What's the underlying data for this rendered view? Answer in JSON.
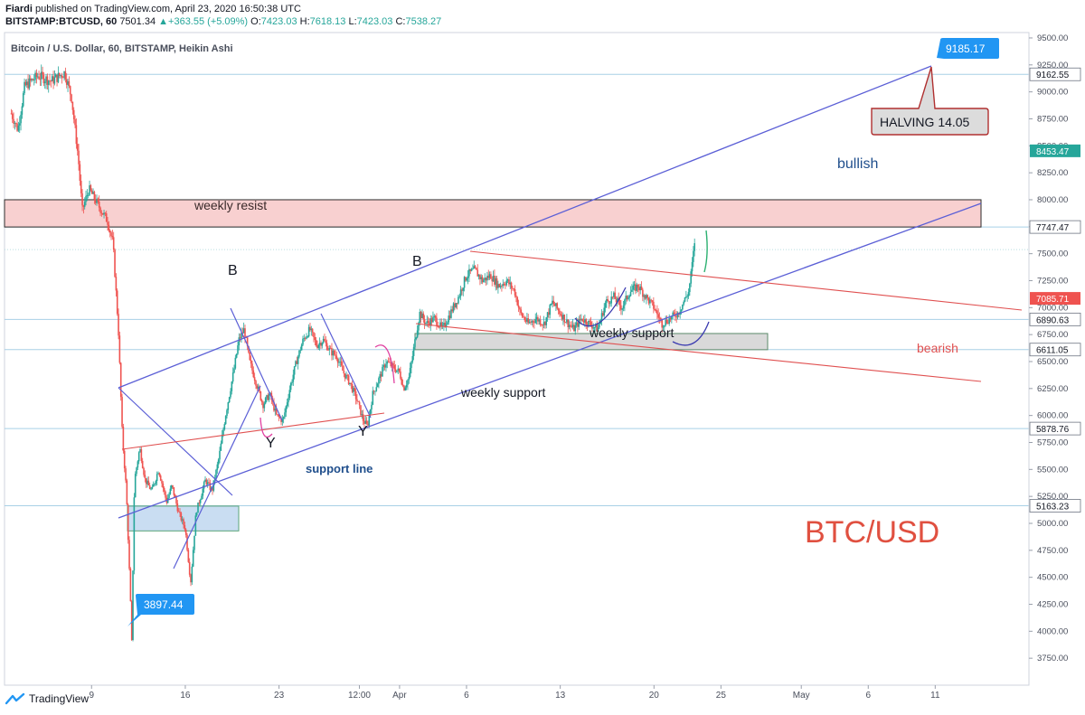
{
  "header": {
    "author": "Fiardi",
    "published_text": "published on TradingView.com, April 23, 2020 16:50:38 UTC",
    "symbol": "BITSTAMP:BTCUSD, 60",
    "last": "7501.34",
    "change_arrow": "▲",
    "change": "+363.55 (+5.09%)",
    "o_label": "O:",
    "o": "7423.03",
    "h_label": "H:",
    "h": "7618.13",
    "l_label": "L:",
    "l": "7423.03",
    "c_label": "C:",
    "c": "7538.27"
  },
  "footer": {
    "brand": "TradingView",
    "logo_icon": "tradingview-logo-icon"
  },
  "chart_data": {
    "type": "candlestick",
    "title": "Bitcoin / U.S. Dollar, 60, BITSTAMP, Heikin Ashi",
    "ylim": [
      3500,
      9550
    ],
    "y_ticks": [
      3750,
      4000,
      4250,
      4500,
      4750,
      5000,
      5250,
      5500,
      5750,
      6000,
      6250,
      6500,
      6750,
      7000,
      7250,
      7500,
      7750,
      8000,
      8250,
      8500,
      8750,
      9000,
      9250,
      9500
    ],
    "x_ticks": [
      {
        "label": "9",
        "day": 9
      },
      {
        "label": "16",
        "day": 16
      },
      {
        "label": "23",
        "day": 23
      },
      {
        "label": "12:00",
        "day": 29
      },
      {
        "label": "Apr",
        "day": 32
      },
      {
        "label": "6",
        "day": 37
      },
      {
        "label": "13",
        "day": 44
      },
      {
        "label": "20",
        "day": 51
      },
      {
        "label": "25",
        "day": 56
      },
      {
        "label": "May",
        "day": 62
      },
      {
        "label": "6",
        "day": 67
      },
      {
        "label": "11",
        "day": 72
      }
    ],
    "x_range_days": [
      2.5,
      79
    ],
    "price_path": [
      [
        3.0,
        8800
      ],
      [
        3.5,
        8650
      ],
      [
        4.0,
        9050
      ],
      [
        5.0,
        9150
      ],
      [
        6.0,
        9100
      ],
      [
        7.0,
        9180
      ],
      [
        7.5,
        8950
      ],
      [
        8.0,
        8400
      ],
      [
        8.3,
        7900
      ],
      [
        8.8,
        8100
      ],
      [
        9.5,
        7950
      ],
      [
        10.2,
        7800
      ],
      [
        10.6,
        7600
      ],
      [
        11.0,
        6800
      ],
      [
        11.3,
        5800
      ],
      [
        11.6,
        5300
      ],
      [
        11.9,
        4300
      ],
      [
        12.0,
        3900
      ],
      [
        12.2,
        5400
      ],
      [
        12.6,
        5700
      ],
      [
        13.0,
        5400
      ],
      [
        13.5,
        5300
      ],
      [
        14.0,
        5500
      ],
      [
        14.6,
        5200
      ],
      [
        15.0,
        5350
      ],
      [
        15.5,
        5100
      ],
      [
        16.0,
        4950
      ],
      [
        16.4,
        4450
      ],
      [
        16.8,
        5100
      ],
      [
        17.5,
        5400
      ],
      [
        18.0,
        5300
      ],
      [
        18.5,
        5600
      ],
      [
        19.0,
        6000
      ],
      [
        19.6,
        6400
      ],
      [
        20.0,
        6700
      ],
      [
        20.4,
        6800
      ],
      [
        20.8,
        6500
      ],
      [
        21.3,
        6300
      ],
      [
        21.8,
        6100
      ],
      [
        22.3,
        6200
      ],
      [
        22.8,
        6000
      ],
      [
        23.3,
        5950
      ],
      [
        23.8,
        6250
      ],
      [
        24.3,
        6500
      ],
      [
        24.8,
        6700
      ],
      [
        25.3,
        6800
      ],
      [
        25.8,
        6650
      ],
      [
        26.3,
        6700
      ],
      [
        26.8,
        6600
      ],
      [
        27.3,
        6550
      ],
      [
        27.8,
        6400
      ],
      [
        28.3,
        6300
      ],
      [
        28.8,
        6150
      ],
      [
        29.3,
        5950
      ],
      [
        29.6,
        5900
      ],
      [
        30.0,
        6200
      ],
      [
        30.5,
        6350
      ],
      [
        31.0,
        6500
      ],
      [
        31.5,
        6450
      ],
      [
        32.0,
        6400
      ],
      [
        32.3,
        6250
      ],
      [
        32.7,
        6350
      ],
      [
        33.1,
        6650
      ],
      [
        33.5,
        6950
      ],
      [
        34.0,
        6850
      ],
      [
        34.6,
        6900
      ],
      [
        35.2,
        6800
      ],
      [
        35.8,
        6950
      ],
      [
        36.4,
        7100
      ],
      [
        37.0,
        7300
      ],
      [
        37.6,
        7350
      ],
      [
        38.2,
        7250
      ],
      [
        38.8,
        7300
      ],
      [
        39.4,
        7200
      ],
      [
        40.0,
        7250
      ],
      [
        40.6,
        7150
      ],
      [
        41.0,
        6950
      ],
      [
        41.6,
        6850
      ],
      [
        42.2,
        6900
      ],
      [
        42.8,
        6850
      ],
      [
        43.4,
        7050
      ],
      [
        44.0,
        6950
      ],
      [
        44.6,
        6850
      ],
      [
        45.0,
        6800
      ],
      [
        45.6,
        6900
      ],
      [
        46.2,
        6850
      ],
      [
        46.8,
        6800
      ],
      [
        47.4,
        7050
      ],
      [
        48.0,
        7100
      ],
      [
        48.6,
        7000
      ],
      [
        49.2,
        7150
      ],
      [
        49.8,
        7200
      ],
      [
        50.4,
        7100
      ],
      [
        51.0,
        7000
      ],
      [
        51.6,
        6850
      ],
      [
        52.2,
        6900
      ],
      [
        52.8,
        6950
      ],
      [
        53.2,
        7050
      ],
      [
        53.6,
        7150
      ],
      [
        53.9,
        7450
      ],
      [
        54.1,
        7700
      ]
    ],
    "horizontal_levels": [
      {
        "price": 9162.55,
        "label": "9162.55",
        "bg": "#ffffff",
        "fg": "#131722"
      },
      {
        "price": 7747.47,
        "label": "7747.47",
        "bg": "#ffffff",
        "fg": "#131722"
      },
      {
        "price": 6890.63,
        "label": "6890.63",
        "bg": "#ffffff",
        "fg": "#131722"
      },
      {
        "price": 6611.05,
        "label": "6611.05",
        "bg": "#ffffff",
        "fg": "#131722"
      },
      {
        "price": 5878.76,
        "label": "5878.76",
        "bg": "#ffffff",
        "fg": "#131722"
      },
      {
        "price": 5163.23,
        "label": "5163.23",
        "bg": "#ffffff",
        "fg": "#131722"
      }
    ],
    "price_badges": [
      {
        "price": 8453.47,
        "label": "8453.47",
        "bg": "#26a69a",
        "fg": "#ffffff"
      },
      {
        "price": 7085.71,
        "label": "7085.71",
        "bg": "#ef5350",
        "fg": "#ffffff"
      }
    ],
    "annotations": {
      "weekly_resist": {
        "text": "weekly resist",
        "price_low": 7747.47,
        "price_high": 8000
      },
      "weekly_support_box": {
        "text": "weekly support"
      },
      "weekly_support_line": {
        "text": "weekly support"
      },
      "support_line": {
        "text": "support line"
      },
      "bullish": {
        "text": "bullish"
      },
      "bearish": {
        "text": "bearish"
      },
      "halving": {
        "text": "HALVING 14.05"
      },
      "high_callout": {
        "text": "9185.17"
      },
      "low_callout": {
        "text": "3897.44"
      },
      "watermark": {
        "text": "BTC/USD"
      },
      "b1": {
        "text": "B"
      },
      "b2": {
        "text": "B"
      },
      "y1": {
        "text": "Y"
      },
      "y2": {
        "text": "Y"
      }
    },
    "colors": {
      "up": "#26a69a",
      "down": "#ef5350",
      "channel": "#5b5fd6",
      "bear": "#e05050",
      "level": "#a8d0e6",
      "resist_fill": "#f8d0d0",
      "support_fill": "#d9d9d9",
      "blue_box": "#c9ddf2",
      "callout": "#2196f3",
      "watermark": "#e05040",
      "text_blue": "#1f4e8c"
    }
  }
}
